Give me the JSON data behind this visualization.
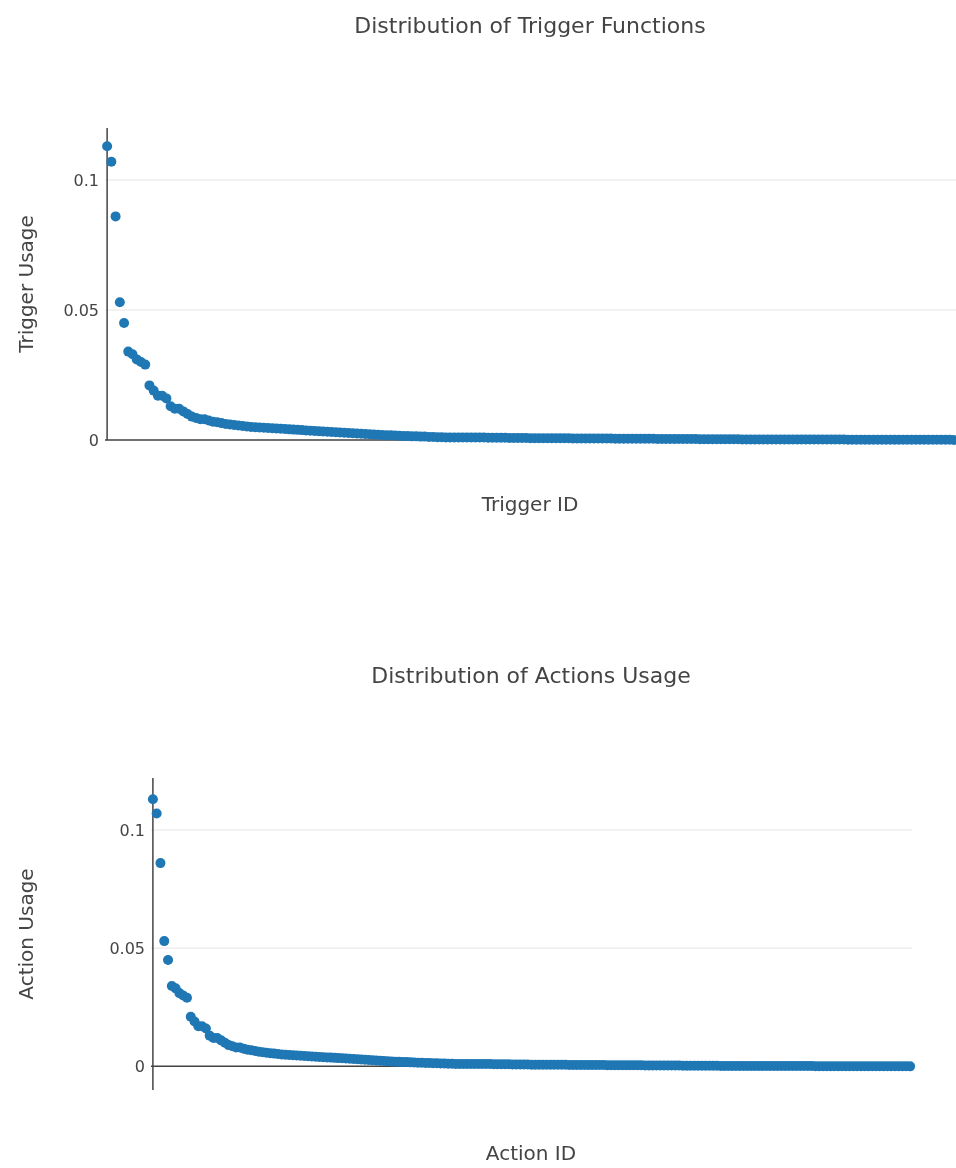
{
  "chart_data": [
    {
      "type": "scatter",
      "title": "Distribution of Trigger Functions",
      "xlabel": "Trigger ID",
      "ylabel": "Trigger Usage",
      "ylim": [
        0,
        0.12
      ],
      "yticks": [
        0,
        0.05,
        0.1
      ],
      "grid": "y",
      "marker": "circle",
      "categories": [
        null,
        null,
        null,
        null,
        null,
        null,
        null,
        null,
        null,
        null,
        null,
        null,
        null,
        null,
        null,
        null,
        null,
        null,
        null,
        null,
        null,
        null,
        null,
        null,
        null,
        null,
        null,
        null,
        null,
        null,
        null,
        null,
        null,
        null,
        null,
        null,
        null,
        null,
        null,
        null,
        null,
        null,
        null,
        null,
        null,
        null,
        null,
        null,
        null,
        null,
        null,
        null,
        null,
        null,
        null,
        null,
        null,
        null,
        null,
        null,
        null,
        null,
        null,
        null,
        null,
        null,
        null,
        null,
        null,
        null,
        null,
        null,
        null,
        null,
        null,
        null,
        null,
        null,
        null,
        null,
        null,
        null,
        null,
        null,
        null,
        null,
        null,
        null,
        null,
        null,
        null,
        null,
        null,
        null,
        null,
        null,
        null,
        null,
        null,
        null,
        null,
        null,
        null,
        null,
        null,
        null,
        null,
        null,
        null,
        null,
        null,
        null,
        null,
        null,
        null,
        null,
        null,
        null,
        null,
        null,
        null,
        null,
        null,
        null,
        null,
        null,
        null,
        null,
        null,
        null,
        null,
        null,
        null,
        null,
        null,
        null,
        null,
        null,
        null,
        null,
        null,
        null,
        null,
        null,
        null,
        null,
        null,
        null,
        null,
        null,
        null,
        null,
        null,
        null,
        null,
        null,
        null,
        null,
        null,
        null,
        null,
        null,
        null,
        null,
        null,
        null,
        null,
        null,
        null,
        null,
        null,
        null,
        null,
        null,
        null,
        null,
        null,
        null,
        null,
        null,
        null,
        null,
        null,
        null,
        null,
        null,
        null,
        null,
        null,
        null,
        null,
        null,
        null,
        null,
        null,
        null,
        null,
        null,
        null,
        null,
        null
      ],
      "series": [
        {
          "color": "#1f77b4",
          "values": [
            0.113,
            0.107,
            0.086,
            0.053,
            0.045,
            0.034,
            0.033,
            0.031,
            0.03,
            0.029,
            0.021,
            0.019,
            0.017,
            0.017,
            0.016,
            0.013,
            0.012,
            0.012,
            0.011,
            0.01,
            0.009,
            0.0085,
            0.008,
            0.008,
            0.0075,
            0.007,
            0.0068,
            0.0065,
            0.0062,
            0.006,
            0.0058,
            0.0056,
            0.0054,
            0.0052,
            0.005,
            0.0049,
            0.0048,
            0.0047,
            0.0046,
            0.0045,
            0.0044,
            0.0043,
            0.0042,
            0.0041,
            0.004,
            0.0039,
            0.0038,
            0.0037,
            0.0036,
            0.0035,
            0.0034,
            0.0033,
            0.0032,
            0.0031,
            0.003,
            0.0029,
            0.0028,
            0.0027,
            0.0026,
            0.0025,
            0.0024,
            0.0023,
            0.0022,
            0.0021,
            0.002,
            0.0019,
            0.0018,
            0.0018,
            0.0017,
            0.0016,
            0.0015,
            0.0015,
            0.0014,
            0.0014,
            0.0013,
            0.0013,
            0.0012,
            0.0012,
            0.0011,
            0.0011,
            0.001,
            0.001,
            0.001,
            0.001,
            0.001,
            0.001,
            0.001,
            0.001,
            0.001,
            0.001,
            0.0009,
            0.0009,
            0.0009,
            0.0009,
            0.0009,
            0.0008,
            0.0008,
            0.0008,
            0.0008,
            0.0008,
            0.0007,
            0.0007,
            0.0007,
            0.0007,
            0.0007,
            0.0007,
            0.0007,
            0.0007,
            0.0007,
            0.0007,
            0.0006,
            0.0006,
            0.0006,
            0.0006,
            0.0006,
            0.0006,
            0.0006,
            0.0006,
            0.0006,
            0.0006,
            0.0005,
            0.0005,
            0.0005,
            0.0005,
            0.0005,
            0.0005,
            0.0005,
            0.0005,
            0.0005,
            0.0005,
            0.0004,
            0.0004,
            0.0004,
            0.0004,
            0.0004,
            0.0004,
            0.0004,
            0.0004,
            0.0004,
            0.0004,
            0.0003,
            0.0003,
            0.0003,
            0.0003,
            0.0003,
            0.0003,
            0.0003,
            0.0003,
            0.0003,
            0.0003,
            0.0002,
            0.0002,
            0.0002,
            0.0002,
            0.0002,
            0.0002,
            0.0002,
            0.0002,
            0.0002,
            0.0002,
            0.0002,
            0.0002,
            0.0002,
            0.0002,
            0.0002,
            0.0002,
            0.0002,
            0.0002,
            0.0002,
            0.0002,
            0.0002,
            0.0002,
            0.0002,
            0.0002,
            0.0002,
            0.0001,
            0.0001,
            0.0001,
            0.0001,
            0.0001,
            0.0001,
            0.0001,
            0.0001,
            0.0001,
            0.0001,
            0.0001,
            0.0001,
            0.0001,
            0.0001,
            0.0001,
            0.0001,
            0.0001,
            0.0001,
            0.0001,
            0.0001,
            0.0001,
            0.0001,
            0.0001,
            0.0001,
            0.0001,
            0
          ]
        }
      ]
    },
    {
      "type": "scatter",
      "title": "Distribution of Actions Usage",
      "xlabel": "Action ID",
      "ylabel": "Action Usage",
      "ylim": [
        -0.01,
        0.122
      ],
      "yticks": [
        0,
        0.05,
        0.1
      ],
      "grid": "y",
      "marker": "circle",
      "categories": [
        null,
        null,
        null,
        null,
        null,
        null,
        null,
        null,
        null,
        null,
        null,
        null,
        null,
        null,
        null,
        null,
        null,
        null,
        null,
        null,
        null,
        null,
        null,
        null,
        null,
        null,
        null,
        null,
        null,
        null,
        null,
        null,
        null,
        null,
        null,
        null,
        null,
        null,
        null,
        null,
        null,
        null,
        null,
        null,
        null,
        null,
        null,
        null,
        null,
        null,
        null,
        null,
        null,
        null,
        null,
        null,
        null,
        null,
        null,
        null,
        null,
        null,
        null,
        null,
        null,
        null,
        null,
        null,
        null,
        null,
        null,
        null,
        null,
        null,
        null,
        null,
        null,
        null,
        null,
        null,
        null,
        null,
        null,
        null,
        null,
        null,
        null,
        null,
        null,
        null,
        null,
        null,
        null,
        null,
        null,
        null,
        null,
        null,
        null,
        null,
        null,
        null,
        null,
        null,
        null,
        null,
        null,
        null,
        null,
        null,
        null,
        null,
        null,
        null,
        null,
        null,
        null,
        null,
        null,
        null,
        null,
        null,
        null,
        null,
        null,
        null,
        null,
        null,
        null,
        null,
        null,
        null,
        null,
        null,
        null,
        null,
        null,
        null,
        null,
        null,
        null,
        null,
        null,
        null,
        null,
        null,
        null,
        null,
        null,
        null,
        null,
        null,
        null,
        null,
        null,
        null,
        null,
        null,
        null,
        null,
        null,
        null,
        null,
        null,
        null,
        null,
        null,
        null,
        null,
        null,
        null,
        null,
        null,
        null,
        null,
        null,
        null,
        null,
        null,
        null,
        null,
        null,
        null,
        null,
        null,
        null,
        null,
        null,
        null,
        null,
        null,
        null,
        null,
        null,
        null,
        null,
        null,
        null,
        null,
        null,
        null
      ],
      "series": [
        {
          "color": "#1f77b4",
          "values": [
            0.113,
            0.107,
            0.086,
            0.053,
            0.045,
            0.034,
            0.033,
            0.031,
            0.03,
            0.029,
            0.021,
            0.019,
            0.017,
            0.017,
            0.016,
            0.013,
            0.012,
            0.012,
            0.011,
            0.01,
            0.009,
            0.0085,
            0.008,
            0.008,
            0.0075,
            0.007,
            0.0068,
            0.0065,
            0.0062,
            0.006,
            0.0058,
            0.0056,
            0.0054,
            0.0052,
            0.005,
            0.0049,
            0.0048,
            0.0047,
            0.0046,
            0.0045,
            0.0044,
            0.0043,
            0.0042,
            0.0041,
            0.004,
            0.0039,
            0.0038,
            0.0037,
            0.0036,
            0.0035,
            0.0034,
            0.0033,
            0.0032,
            0.0031,
            0.003,
            0.0029,
            0.0028,
            0.0027,
            0.0026,
            0.0025,
            0.0024,
            0.0023,
            0.0022,
            0.0021,
            0.002,
            0.0019,
            0.0018,
            0.0018,
            0.0017,
            0.0016,
            0.0015,
            0.0015,
            0.0014,
            0.0014,
            0.0013,
            0.0013,
            0.0012,
            0.0012,
            0.0011,
            0.0011,
            0.001,
            0.001,
            0.001,
            0.001,
            0.001,
            0.001,
            0.001,
            0.001,
            0.001,
            0.001,
            0.0009,
            0.0009,
            0.0009,
            0.0009,
            0.0009,
            0.0008,
            0.0008,
            0.0008,
            0.0008,
            0.0008,
            0.0007,
            0.0007,
            0.0007,
            0.0007,
            0.0007,
            0.0007,
            0.0007,
            0.0007,
            0.0007,
            0.0007,
            0.0006,
            0.0006,
            0.0006,
            0.0006,
            0.0006,
            0.0006,
            0.0006,
            0.0006,
            0.0006,
            0.0006,
            0.0005,
            0.0005,
            0.0005,
            0.0005,
            0.0005,
            0.0005,
            0.0005,
            0.0005,
            0.0005,
            0.0005,
            0.0004,
            0.0004,
            0.0004,
            0.0004,
            0.0004,
            0.0004,
            0.0004,
            0.0004,
            0.0004,
            0.0004,
            0.0003,
            0.0003,
            0.0003,
            0.0003,
            0.0003,
            0.0003,
            0.0003,
            0.0003,
            0.0003,
            0.0003,
            0.0002,
            0.0002,
            0.0002,
            0.0002,
            0.0002,
            0.0002,
            0.0002,
            0.0002,
            0.0002,
            0.0002,
            0.0002,
            0.0002,
            0.0002,
            0.0002,
            0.0002,
            0.0002,
            0.0002,
            0.0002,
            0.0002,
            0.0002,
            0.0002,
            0.0002,
            0.0002,
            0.0002,
            0.0002,
            0.0001,
            0.0001,
            0.0001,
            0.0001,
            0.0001,
            0.0001,
            0.0001,
            0.0001,
            0.0001,
            0.0001,
            0.0001,
            0.0001,
            0.0001,
            0.0001,
            0.0001,
            0.0001,
            0.0001,
            0.0001,
            0.0001,
            0.0001,
            0.0001,
            0.0001,
            0.0001,
            0.0001,
            0.0001,
            0
          ]
        }
      ]
    }
  ]
}
